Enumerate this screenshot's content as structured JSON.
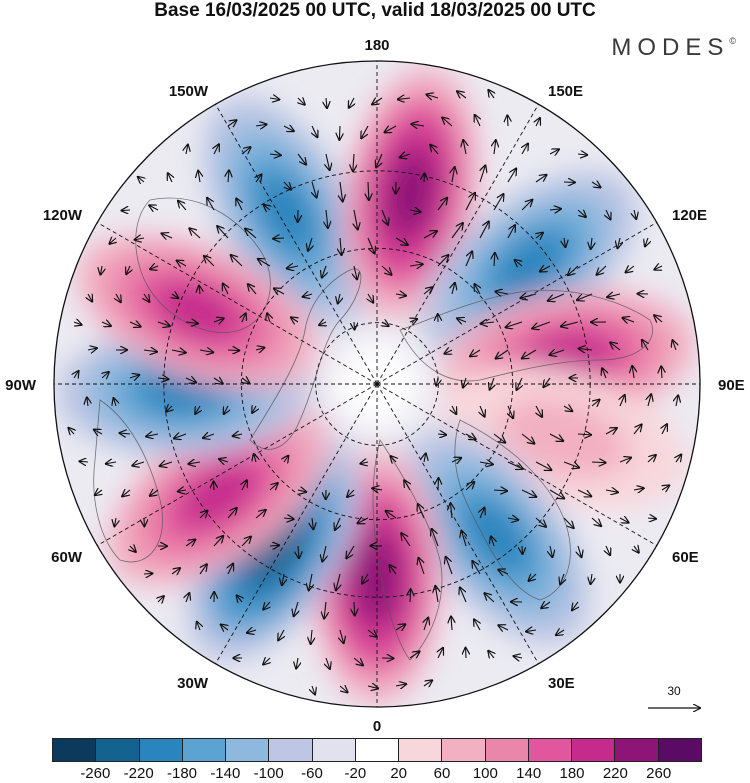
{
  "title": "Base 16/03/2025 00 UTC, valid 18/03/2025 00 UTC",
  "brand": "MODES",
  "brand_mark": "©",
  "map": {
    "projection": "north-polar-stereographic",
    "longitude_labels": [
      "180",
      "150E",
      "120E",
      "90E",
      "60E",
      "30E",
      "0",
      "30W",
      "60W",
      "90W",
      "120W",
      "150W"
    ],
    "reference_vector_label": "30",
    "anomaly_centers": [
      {
        "sign": "negative",
        "lon_deg": -152,
        "intensity": 200
      },
      {
        "sign": "positive",
        "lon_deg": 170,
        "intensity": 250
      },
      {
        "sign": "negative",
        "lon_deg": 128,
        "intensity": 210
      },
      {
        "sign": "positive",
        "lon_deg": 98,
        "intensity": 180
      },
      {
        "sign": "positive",
        "lon_deg": 74,
        "intensity": 80
      },
      {
        "sign": "negative",
        "lon_deg": 38,
        "intensity": 190
      },
      {
        "sign": "positive",
        "lon_deg": 0,
        "intensity": 240
      },
      {
        "sign": "negative",
        "lon_deg": -32,
        "intensity": 240
      },
      {
        "sign": "positive",
        "lon_deg": -55,
        "intensity": 210
      },
      {
        "sign": "negative",
        "lon_deg": -88,
        "intensity": 200
      },
      {
        "sign": "positive",
        "lon_deg": -112,
        "intensity": 190
      }
    ],
    "colors": {
      "land_outline": "#555555",
      "grid": "#111111",
      "vector": "#111111"
    }
  },
  "colorbar": {
    "ticks": [
      "-260",
      "-220",
      "-180",
      "-140",
      "-100",
      "-60",
      "-20",
      "20",
      "60",
      "100",
      "140",
      "180",
      "220",
      "260"
    ],
    "colors": [
      "#0c3a5c",
      "#14628f",
      "#2a84bd",
      "#5aa3d3",
      "#8eb8de",
      "#bdc6e4",
      "#e2e2ee",
      "#ffffff",
      "#f8d7dc",
      "#f2b0c2",
      "#eb86ab",
      "#e1569d",
      "#c52a8c",
      "#8f1478",
      "#5b0a66"
    ]
  }
}
